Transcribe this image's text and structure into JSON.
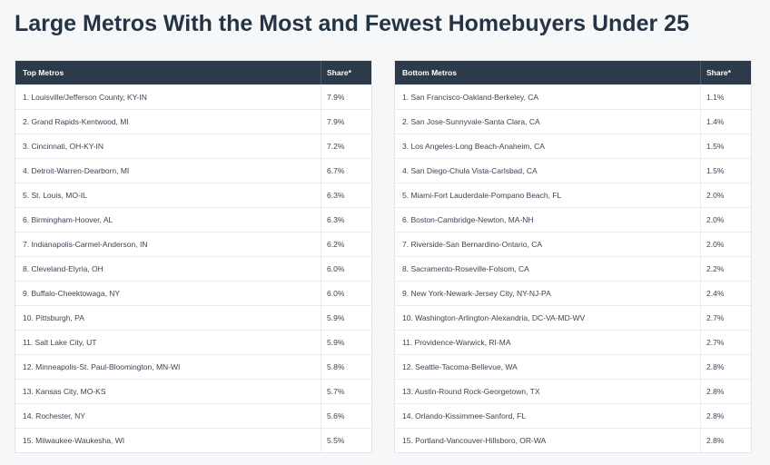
{
  "title": "Large Metros With the Most and Fewest Homebuyers Under 25",
  "tables": [
    {
      "header": [
        "Top Metros",
        "Share*"
      ],
      "rows": [
        [
          "1. Louisville/Jefferson County, KY-IN",
          "7.9%"
        ],
        [
          "2. Grand Rapids-Kentwood, MI",
          "7.9%"
        ],
        [
          "3. Cincinnati, OH-KY-IN",
          "7.2%"
        ],
        [
          "4. Detroit-Warren-Dearborn, MI",
          "6.7%"
        ],
        [
          "5. St. Louis, MO-IL",
          "6.3%"
        ],
        [
          "6. Birmingham-Hoover, AL",
          "6.3%"
        ],
        [
          "7. Indianapolis-Carmel-Anderson, IN",
          "6.2%"
        ],
        [
          "8. Cleveland-Elyria, OH",
          "6.0%"
        ],
        [
          "9. Buffalo-Cheektowaga, NY",
          "6.0%"
        ],
        [
          "10. Pittsburgh, PA",
          "5.9%"
        ],
        [
          "11. Salt Lake City, UT",
          "5.9%"
        ],
        [
          "12. Minneapolis-St. Paul-Bloomington, MN-WI",
          "5.8%"
        ],
        [
          "13. Kansas City, MO-KS",
          "5.7%"
        ],
        [
          "14. Rochester, NY",
          "5.6%"
        ],
        [
          "15. Milwaukee-Waukesha, WI",
          "5.5%"
        ]
      ]
    },
    {
      "header": [
        "Bottom Metros",
        "Share*"
      ],
      "rows": [
        [
          "1. San Francisco-Oakland-Berkeley, CA",
          "1.1%"
        ],
        [
          "2. San Jose-Sunnyvale-Santa Clara, CA",
          "1.4%"
        ],
        [
          "3. Los Angeles-Long Beach-Anaheim, CA",
          "1.5%"
        ],
        [
          "4. San Diego-Chula Vista-Carlsbad, CA",
          "1.5%"
        ],
        [
          "5. Miami-Fort Lauderdale-Pompano Beach, FL",
          "2.0%"
        ],
        [
          "6. Boston-Cambridge-Newton, MA-NH",
          "2.0%"
        ],
        [
          "7. Riverside-San Bernardino-Ontario, CA",
          "2.0%"
        ],
        [
          "8. Sacramento-Roseville-Folsom, CA",
          "2.2%"
        ],
        [
          "9. New York-Newark-Jersey City, NY-NJ-PA",
          "2.4%"
        ],
        [
          "10. Washington-Arlington-Alexandria, DC-VA-MD-WV",
          "2.7%"
        ],
        [
          "11. Providence-Warwick, RI-MA",
          "2.7%"
        ],
        [
          "12. Seattle-Tacoma-Bellevue, WA",
          "2.8%"
        ],
        [
          "13. Austin-Round Rock-Georgetown, TX",
          "2.8%"
        ],
        [
          "14. Orlando-Kissimmee-Sanford, FL",
          "2.8%"
        ],
        [
          "15. Portland-Vancouver-Hillsboro, OR-WA",
          "2.8%"
        ]
      ]
    }
  ]
}
